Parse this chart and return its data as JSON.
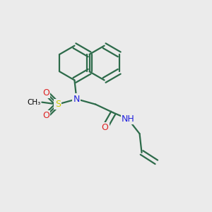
{
  "bg_color": "#ebebeb",
  "bond_color": "#2d6b4a",
  "atom_colors": {
    "N": "#2222dd",
    "O": "#dd2222",
    "S": "#cccc00",
    "H": "#2222dd",
    "C": "#000000"
  },
  "title": "",
  "figsize": [
    3.0,
    3.0
  ],
  "dpi": 100
}
